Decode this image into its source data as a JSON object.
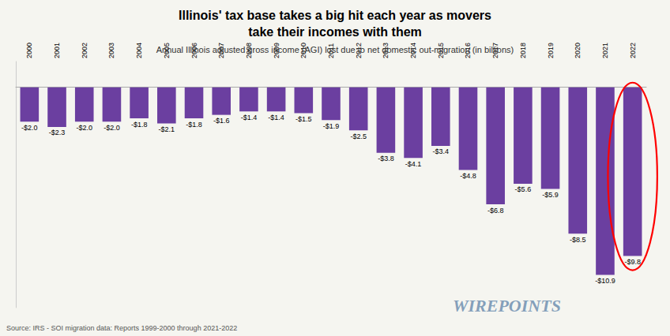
{
  "chart_data": {
    "type": "bar",
    "title": "Illinois' tax base takes a big hit each year as movers\ntake their incomes with them",
    "subtitle": "Annual Illinois adjusted gross income (AGI) lost due to net domestic out-migration (in billions)",
    "annotations": [
      "Source: IRS - SOI migration data: Reports 1999-2000 through 2021-2022",
      "WIREPOINTS"
    ],
    "categories": [
      "2000",
      "2001",
      "2002",
      "2003",
      "2004",
      "2005",
      "2006",
      "2007",
      "2008",
      "2009",
      "2010",
      "2011",
      "2012",
      "2013",
      "2014",
      "2015",
      "2016",
      "2017",
      "2018",
      "2019",
      "2020",
      "2021",
      "2022"
    ],
    "values": [
      -2.0,
      -2.3,
      -2.0,
      -2.0,
      -1.8,
      -2.1,
      -1.8,
      -1.6,
      -1.4,
      -1.4,
      -1.5,
      -1.9,
      -2.5,
      -3.8,
      -4.1,
      -3.4,
      -4.8,
      -6.8,
      -5.6,
      -5.9,
      -8.5,
      -10.9,
      -9.8
    ],
    "value_labels": [
      "-$2.0",
      "-$2.3",
      "-$2.0",
      "-$2.0",
      "-$1.8",
      "-$2.1",
      "-$1.8",
      "-$1.6",
      "-$1.4",
      "-$1.4",
      "-$1.5",
      "-$1.9",
      "-$2.5",
      "-$3.8",
      "-$4.1",
      "-$3.4",
      "-$4.8",
      "-$6.8",
      "-$5.6",
      "-$5.9",
      "-$8.5",
      "-$10.9",
      "-$9.8"
    ],
    "data_labels": true,
    "color": "#6B3FA0",
    "ylim": [
      -12.8,
      1.5
    ],
    "grid": false,
    "tick_labels": "x"
  }
}
